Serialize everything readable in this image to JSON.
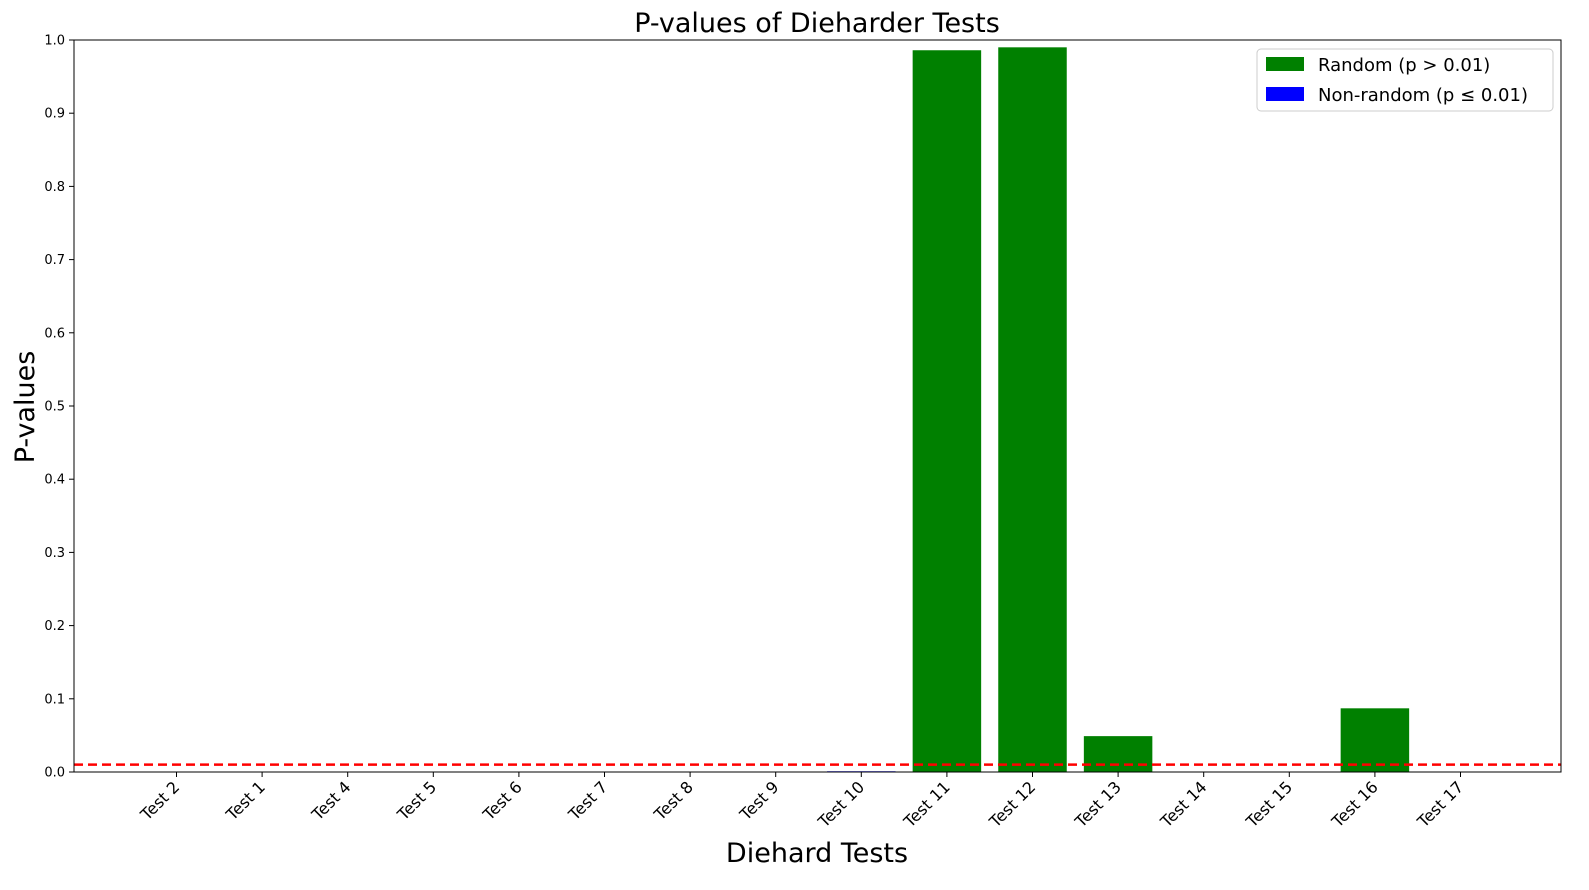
{
  "chart_data": {
    "type": "bar",
    "title": "P-values of Dieharder Tests",
    "xlabel": "Diehard Tests",
    "ylabel": "P-values",
    "categories": [
      "Test 2",
      "Test 1",
      "Test 4",
      "Test 5",
      "Test 6",
      "Test 7",
      "Test 8",
      "Test 9",
      "Test 10",
      "Test 11",
      "Test 12",
      "Test 13",
      "Test 14",
      "Test 15",
      "Test 16",
      "Test 17"
    ],
    "values": [
      0.0,
      0.0,
      0.0,
      0.0,
      0.0,
      0.0,
      0.0,
      0.0,
      0.001,
      0.986,
      0.99,
      0.049,
      0.0,
      0.0,
      0.087,
      0.0
    ],
    "ylim": [
      0,
      1.0
    ],
    "yticks": [
      "0.0",
      "0.1",
      "0.2",
      "0.3",
      "0.4",
      "0.5",
      "0.6",
      "0.7",
      "0.8",
      "0.9",
      "1.0"
    ],
    "threshold": 0.01,
    "threshold_color": "#ff0000",
    "colors": {
      "random": "#008000",
      "nonrandom": "#0000ff"
    },
    "legend": {
      "position": "top-right",
      "random_label": "Random (p > 0.01)",
      "nonrandom_label": "Non-random (p ≤ 0.01)"
    },
    "grid": false
  }
}
